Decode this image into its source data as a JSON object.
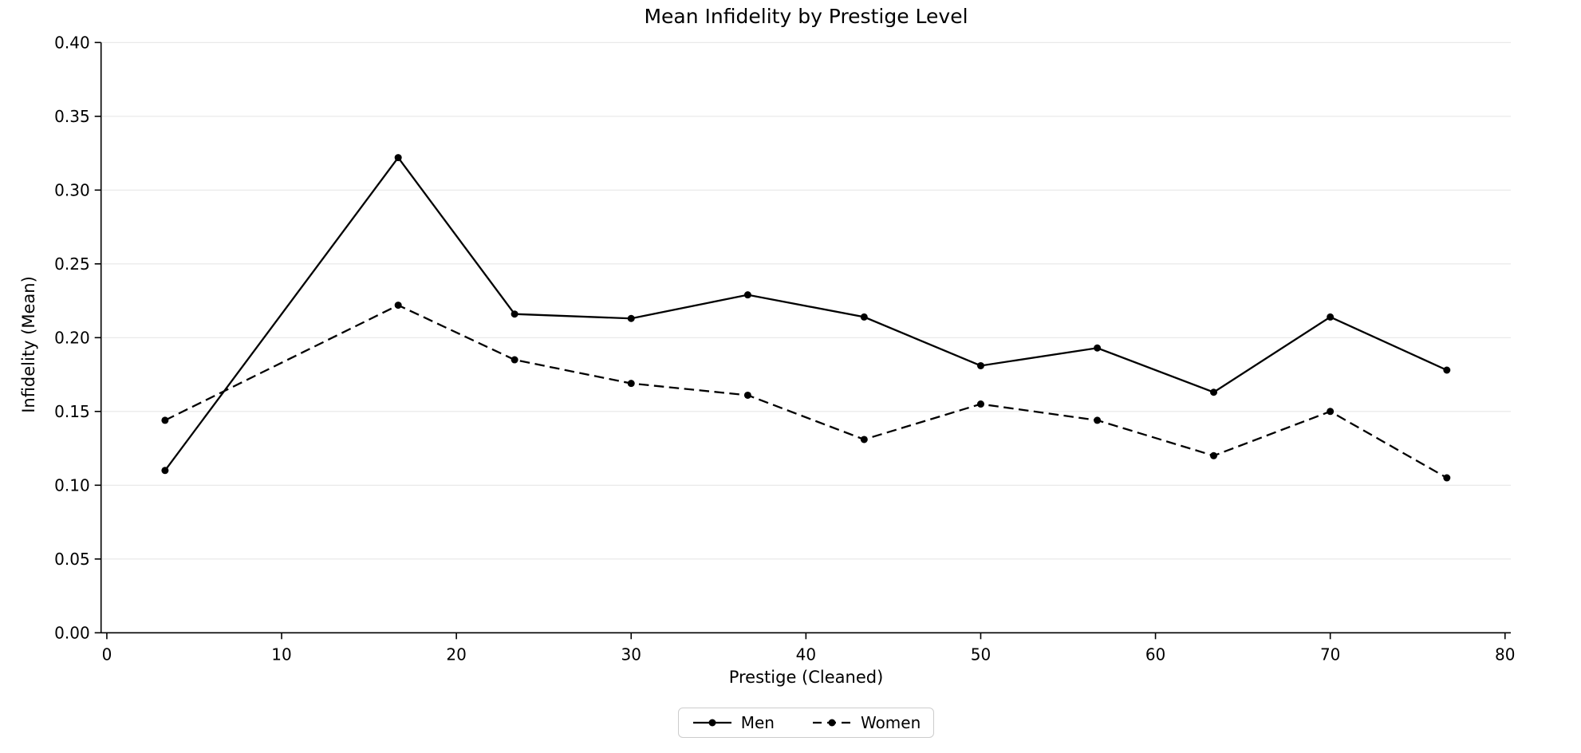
{
  "chart_data": {
    "type": "line",
    "title": "Mean Infidelity by Prestige Level",
    "xlabel": "Prestige (Cleaned)",
    "ylabel": "Infidelity (Mean)",
    "x": [
      3.33,
      16.67,
      23.33,
      30.0,
      36.67,
      43.33,
      50.0,
      56.67,
      63.33,
      70.0,
      76.67
    ],
    "series": [
      {
        "name": "Men",
        "style": "solid",
        "values": [
          0.11,
          0.322,
          0.216,
          0.213,
          0.229,
          0.214,
          0.181,
          0.193,
          0.163,
          0.214,
          0.178
        ]
      },
      {
        "name": "Women",
        "style": "dashed",
        "values": [
          0.144,
          0.222,
          0.185,
          0.169,
          0.161,
          0.131,
          0.155,
          0.144,
          0.12,
          0.15,
          0.105
        ]
      }
    ],
    "xlim": [
      -0.33,
      80.33
    ],
    "ylim": [
      0.0,
      0.4
    ],
    "xticks": [
      0,
      10,
      20,
      30,
      40,
      50,
      60,
      70,
      80
    ],
    "xtick_labels": [
      "0",
      "10",
      "20",
      "30",
      "40",
      "50",
      "60",
      "70",
      "80"
    ],
    "yticks": [
      0.0,
      0.05,
      0.1,
      0.15,
      0.2,
      0.25,
      0.3,
      0.35,
      0.4
    ],
    "ytick_labels": [
      "0.00",
      "0.05",
      "0.10",
      "0.15",
      "0.20",
      "0.25",
      "0.30",
      "0.35",
      "0.40"
    ],
    "grid": "horizontal-only",
    "legend_position": "bottom-center",
    "line_color": "#000000",
    "grid_color": "#e7e7e7",
    "axis_color": "#000000",
    "legend_border_color": "#cccccc",
    "background_color": "#ffffff"
  }
}
